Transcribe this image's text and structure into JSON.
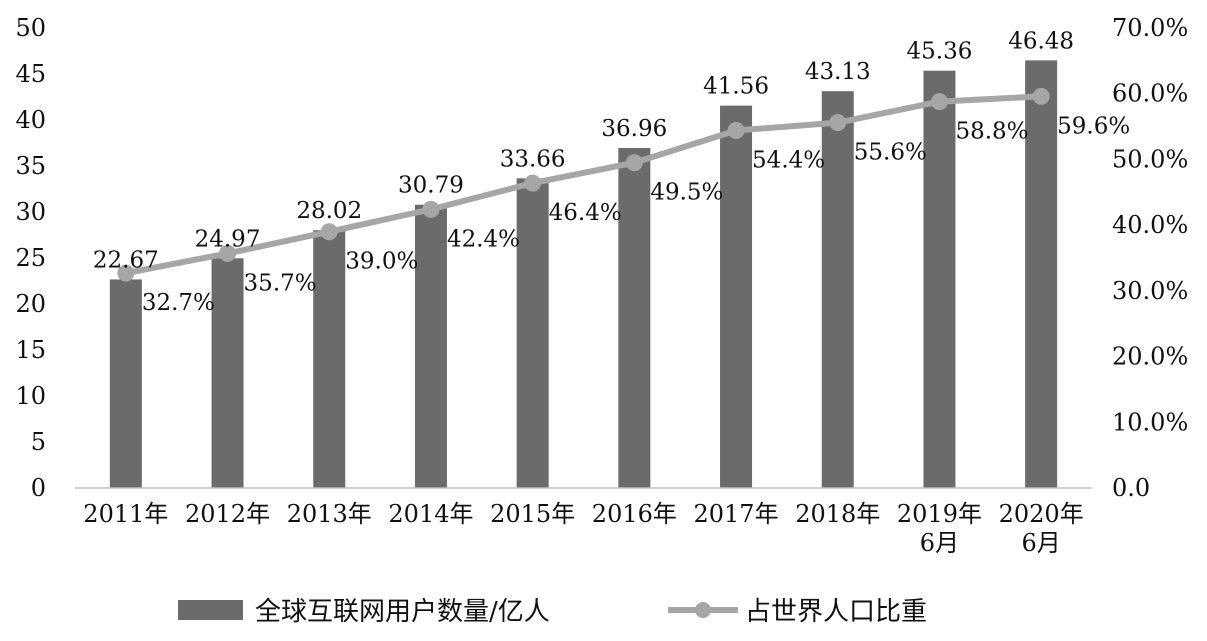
{
  "chart_data": {
    "type": "bar",
    "categories": [
      "2011年",
      "2012年",
      "2013年",
      "2014年",
      "2015年",
      "2016年",
      "2017年",
      "2018年",
      "2019年\n6月",
      "2020年\n6月"
    ],
    "series": [
      {
        "name": "全球互联网用户数量/亿人",
        "type": "bar",
        "axis": "left",
        "color": "#6b6b6b",
        "values": [
          22.67,
          24.97,
          28.02,
          30.79,
          33.66,
          36.96,
          41.56,
          43.13,
          45.36,
          46.48
        ],
        "labels": [
          "22.67",
          "24.97",
          "28.02",
          "30.79",
          "33.66",
          "36.96",
          "41.56",
          "43.13",
          "45.36",
          "46.48"
        ]
      },
      {
        "name": "占世界人口比重",
        "type": "line",
        "axis": "right",
        "color": "#a6a6a6",
        "values": [
          32.7,
          35.7,
          39.0,
          42.4,
          46.4,
          49.5,
          54.4,
          55.6,
          58.8,
          59.6
        ],
        "labels": [
          "32.7%",
          "35.7%",
          "39.0%",
          "42.4%",
          "46.4%",
          "49.5%",
          "54.4%",
          "55.6%",
          "58.8%",
          "59.6%"
        ]
      }
    ],
    "y_left": {
      "min": 0,
      "max": 50,
      "ticks": [
        "0",
        "5",
        "10",
        "15",
        "20",
        "25",
        "30",
        "35",
        "40",
        "45",
        "50"
      ]
    },
    "y_right": {
      "min": 0,
      "max": 70,
      "ticks": [
        "0.0",
        "10.0%",
        "20.0%",
        "30.0%",
        "40.0%",
        "50.0%",
        "60.0%",
        "70.0%"
      ]
    },
    "title": "",
    "xlabel": "",
    "ylabel": "",
    "grid": false,
    "legend": "bottom"
  }
}
